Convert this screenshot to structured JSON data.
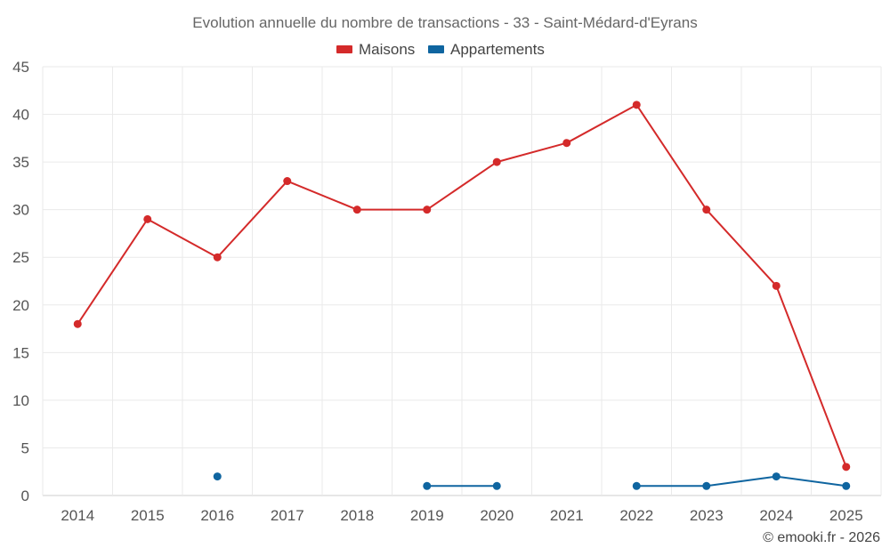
{
  "chart_data": {
    "type": "line",
    "title": "Evolution annuelle du nombre de transactions - 33 - Saint-Médard-d'Eyrans",
    "categories": [
      "2014",
      "2015",
      "2016",
      "2017",
      "2018",
      "2019",
      "2020",
      "2021",
      "2022",
      "2023",
      "2024",
      "2025"
    ],
    "ylim": [
      0,
      45
    ],
    "yticks": [
      0,
      5,
      10,
      15,
      20,
      25,
      30,
      35,
      40,
      45
    ],
    "grid": true,
    "legend_position": "top-center",
    "series": [
      {
        "name": "Maisons",
        "color": "#d42a2a",
        "values": [
          18,
          29,
          25,
          33,
          30,
          30,
          35,
          37,
          41,
          30,
          22,
          3
        ]
      },
      {
        "name": "Appartements",
        "color": "#0f65a0",
        "values": [
          null,
          null,
          2,
          null,
          null,
          1,
          1,
          null,
          1,
          1,
          2,
          1
        ]
      }
    ],
    "credit": "© emooki.fr - 2026"
  }
}
